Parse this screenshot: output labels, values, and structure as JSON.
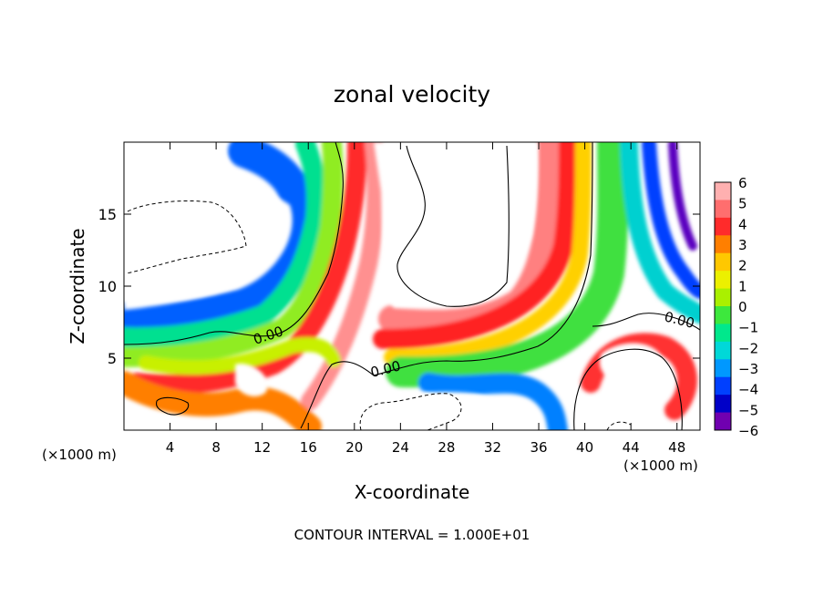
{
  "chart_data": {
    "type": "heatmap",
    "title": "zonal velocity",
    "xlabel": "X-coordinate",
    "ylabel": "Z-coordinate",
    "x_unit": "(×1000 m)",
    "x_unit_right": "(×1000 m)",
    "xlim": [
      0,
      50
    ],
    "ylim": [
      0,
      20
    ],
    "x_ticks": [
      4,
      8,
      12,
      16,
      20,
      24,
      28,
      32,
      36,
      40,
      44,
      48
    ],
    "y_ticks": [
      5,
      10,
      15
    ],
    "footer": "CONTOUR INTERVAL = 1.000E+01",
    "contour_labels": [
      "0.00",
      "0.00",
      "0.00"
    ],
    "colorbar": {
      "ticks": [
        6,
        5,
        4,
        3,
        2,
        1,
        0,
        -1,
        -2,
        -3,
        -4,
        -5,
        -6
      ],
      "tick_labels": [
        "6",
        "5",
        "4",
        "3",
        "2",
        "1",
        "0",
        "−1",
        "−2",
        "−3",
        "−4",
        "−5",
        "−6"
      ],
      "colors": [
        "#ffb0b0",
        "#ff6e6e",
        "#ff2b2b",
        "#ff7f00",
        "#ffc800",
        "#ecf000",
        "#aaf000",
        "#3de83d",
        "#00e88c",
        "#00d8d8",
        "#0098ff",
        "#0040ff",
        "#0000c8",
        "#7000b0"
      ]
    }
  }
}
